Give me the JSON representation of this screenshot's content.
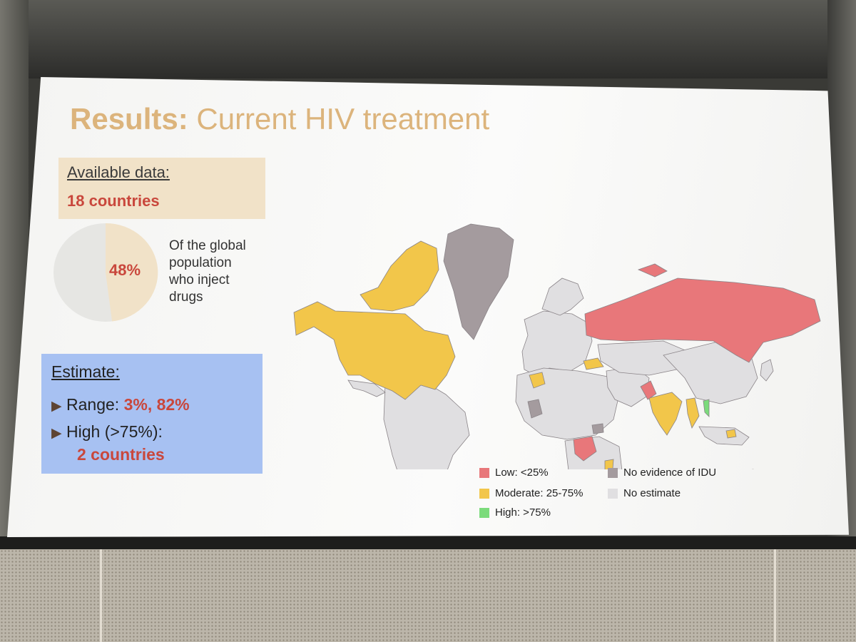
{
  "slide": {
    "title_bold": "Results:",
    "title_rest": "Current HIV treatment",
    "available": {
      "header": "Available data:",
      "value": "18 countries"
    },
    "pie": {
      "percent_label": "48%",
      "fraction": 0.48,
      "caption_lines": [
        "Of the global",
        "population",
        "who inject",
        "drugs"
      ],
      "fill_color": "#f1e2c8",
      "rest_color": "#e6e6e3"
    },
    "estimate": {
      "header": "Estimate:",
      "range_label": "Range:",
      "range_value": "3%, 82%",
      "high_label": "High (>75%):",
      "high_value": "2 countries",
      "bullet_icon": "triangle-bullet-icon"
    },
    "legend": [
      {
        "label": "Low: <25%",
        "color": "#e8777a"
      },
      {
        "label": "Moderate: 25-75%",
        "color": "#f2c64a"
      },
      {
        "label": "High: >75%",
        "color": "#7bdb7b"
      },
      {
        "label": "No evidence of IDU",
        "color": "#a49b9e"
      },
      {
        "label": "No estimate",
        "color": "#e0dfe1"
      }
    ]
  }
}
